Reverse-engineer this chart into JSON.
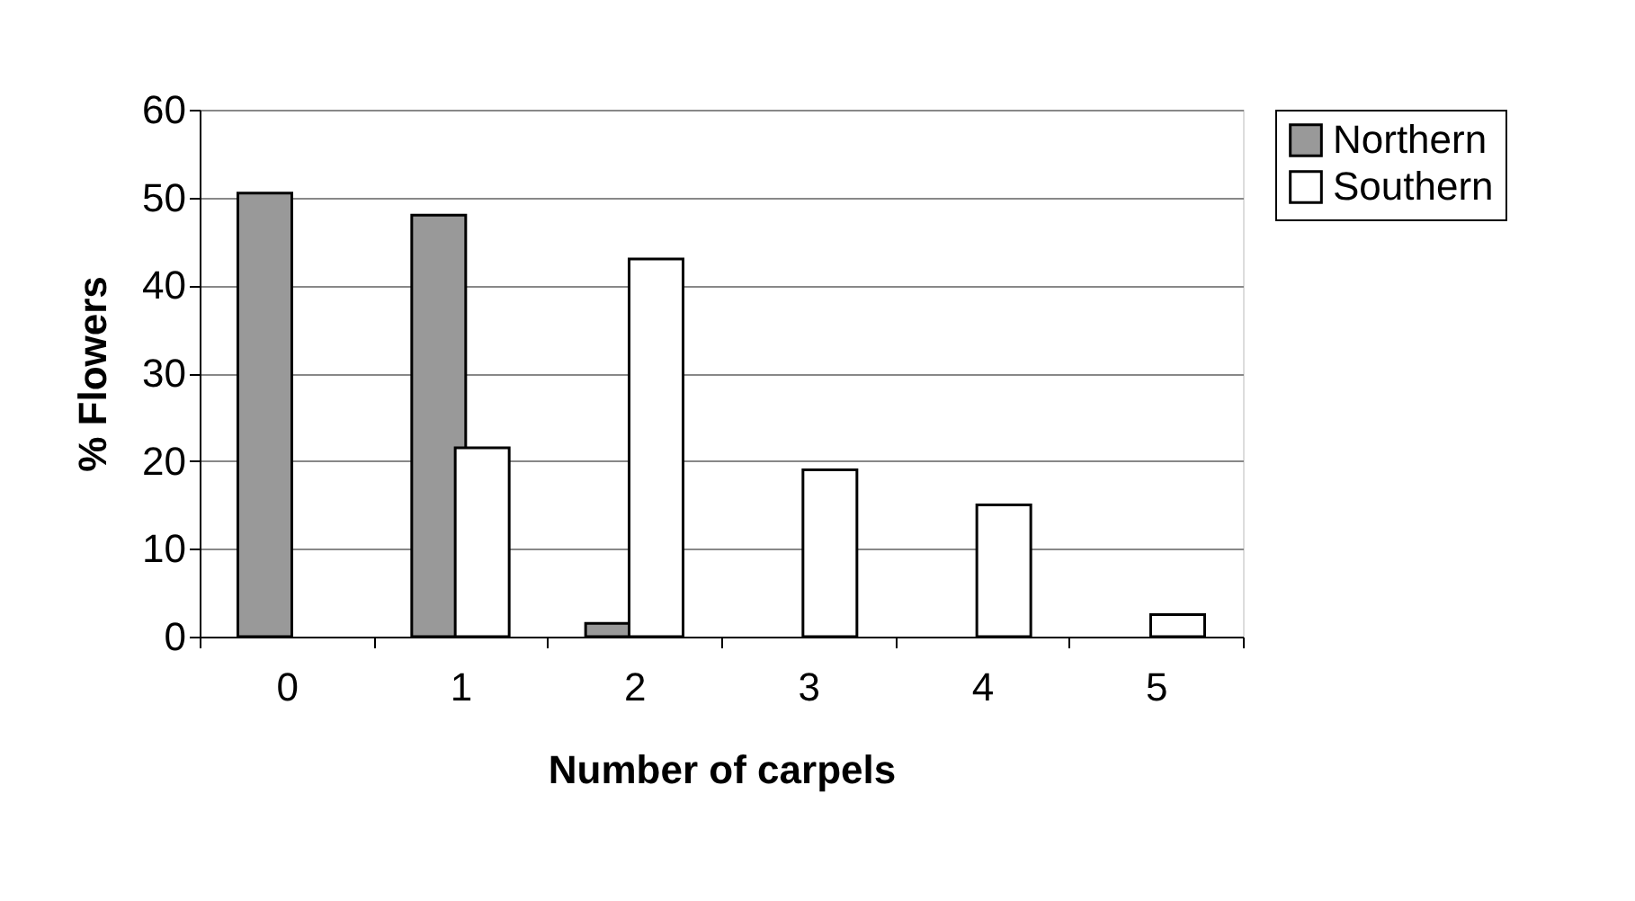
{
  "chart_data": {
    "type": "bar",
    "xlabel": "Number of carpels",
    "ylabel": "% Flowers",
    "categories": [
      "0",
      "1",
      "2",
      "3",
      "4",
      "5"
    ],
    "series": [
      {
        "name": "Northern",
        "color": "#999999",
        "values": [
          50.5,
          48,
          1.5,
          null,
          null,
          null
        ]
      },
      {
        "name": "Southern",
        "color": "#ffffff",
        "values": [
          null,
          21.5,
          43,
          19,
          15,
          2.5
        ]
      }
    ],
    "ylim": [
      0,
      60
    ],
    "yticks": [
      0,
      10,
      20,
      30,
      40,
      50,
      60
    ],
    "grid": "y",
    "legend": "right"
  }
}
